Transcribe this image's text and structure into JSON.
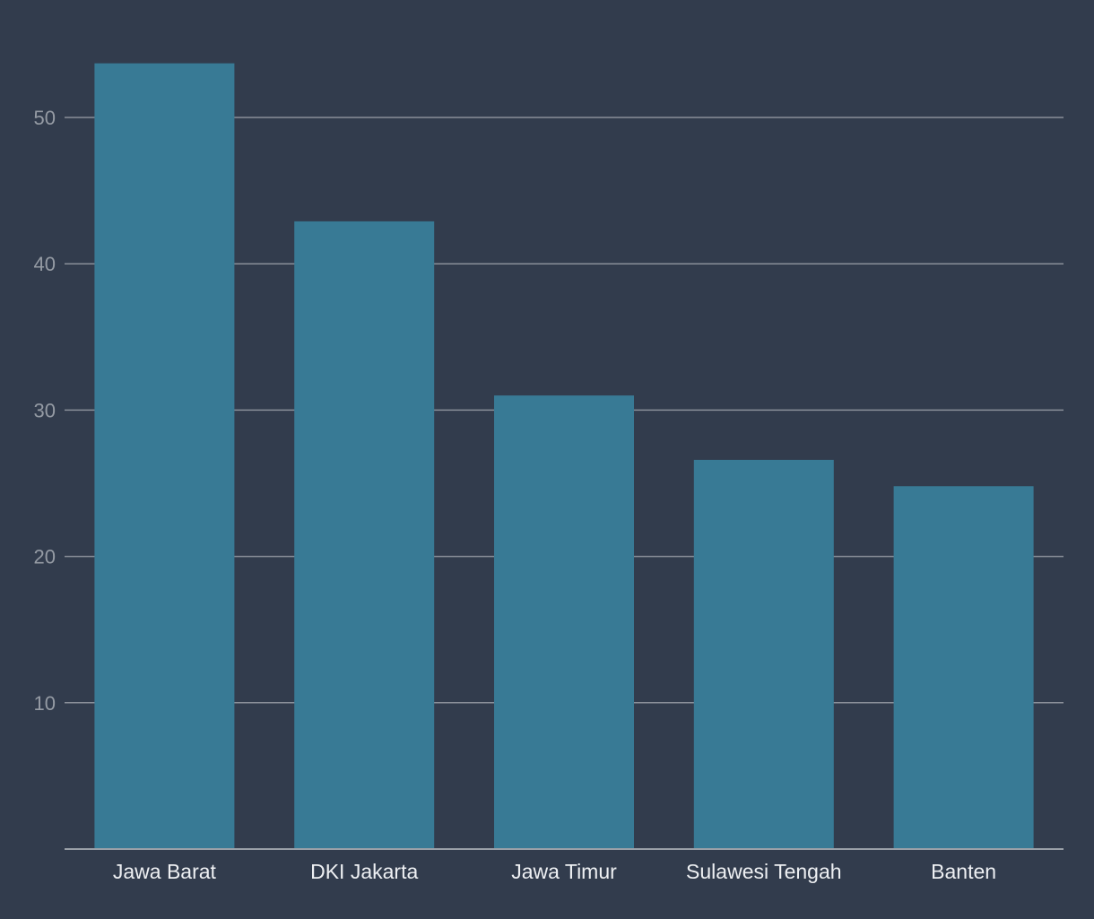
{
  "colors": {
    "background": "#323c4d",
    "bar": "#387a95",
    "grid": "#8a8f99",
    "axis_line": "#9aa0a8",
    "tick_text": "#959ba4",
    "category_text": "#eef0f3"
  },
  "chart_data": {
    "type": "bar",
    "categories": [
      "Jawa Barat",
      "DKI Jakarta",
      "Jawa Timur",
      "Sulawesi Tengah",
      "Banten"
    ],
    "values": [
      53.7,
      42.9,
      31.0,
      26.6,
      24.8
    ],
    "title": "",
    "xlabel": "",
    "ylabel": "",
    "ylim": [
      0,
      55
    ],
    "yticks": [
      10,
      20,
      30,
      40,
      50
    ],
    "grid": true,
    "legend": "none"
  }
}
